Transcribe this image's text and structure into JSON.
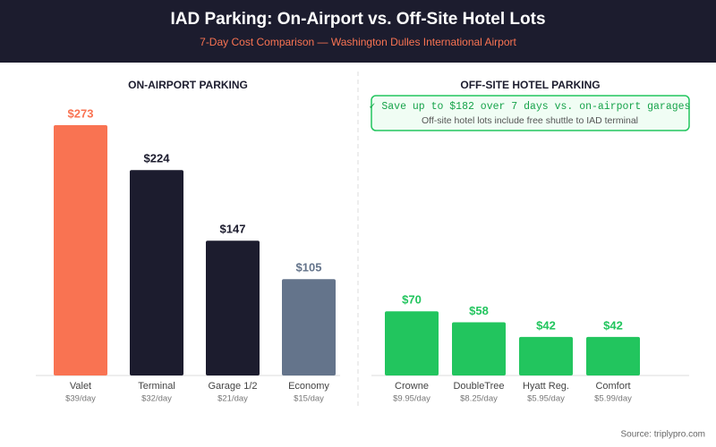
{
  "title": "IAD Parking: On-Airport vs. Off-Site Hotel Lots",
  "subtitle": "7-Day Cost Comparison — Washington Dulles International Airport",
  "source": "Source: triplypro.com",
  "chart_data": [
    {
      "type": "bar",
      "title": "ON-AIRPORT PARKING",
      "categories": [
        "Valet",
        "Terminal",
        "Garage 1/2",
        "Economy"
      ],
      "category_notes": [
        "$39/day",
        "$32/day",
        "$21/day",
        "$15/day"
      ],
      "values": [
        273,
        224,
        147,
        105
      ],
      "value_labels": [
        "$273",
        "$224",
        "$147",
        "$105"
      ],
      "colors": [
        "#f97352",
        "#1c1c2e",
        "#1c1c2e",
        "#64748b"
      ]
    },
    {
      "type": "bar",
      "title": "OFF-SITE HOTEL PARKING",
      "categories": [
        "Crowne",
        "DoubleTree",
        "Hyatt Reg.",
        "Comfort"
      ],
      "category_notes": [
        "$9.95/day",
        "$8.25/day",
        "$5.95/day",
        "$5.99/day"
      ],
      "values": [
        70,
        58,
        42,
        42
      ],
      "value_labels": [
        "$70",
        "$58",
        "$42",
        "$42"
      ],
      "colors": [
        "#22c55e",
        "#22c55e",
        "#22c55e",
        "#22c55e"
      ],
      "callout": {
        "headline": "✓ Save up to $182 over 7 days vs. on-airport garages",
        "text": "Off-site hotel lots include free shuttle to IAD terminal"
      }
    }
  ]
}
